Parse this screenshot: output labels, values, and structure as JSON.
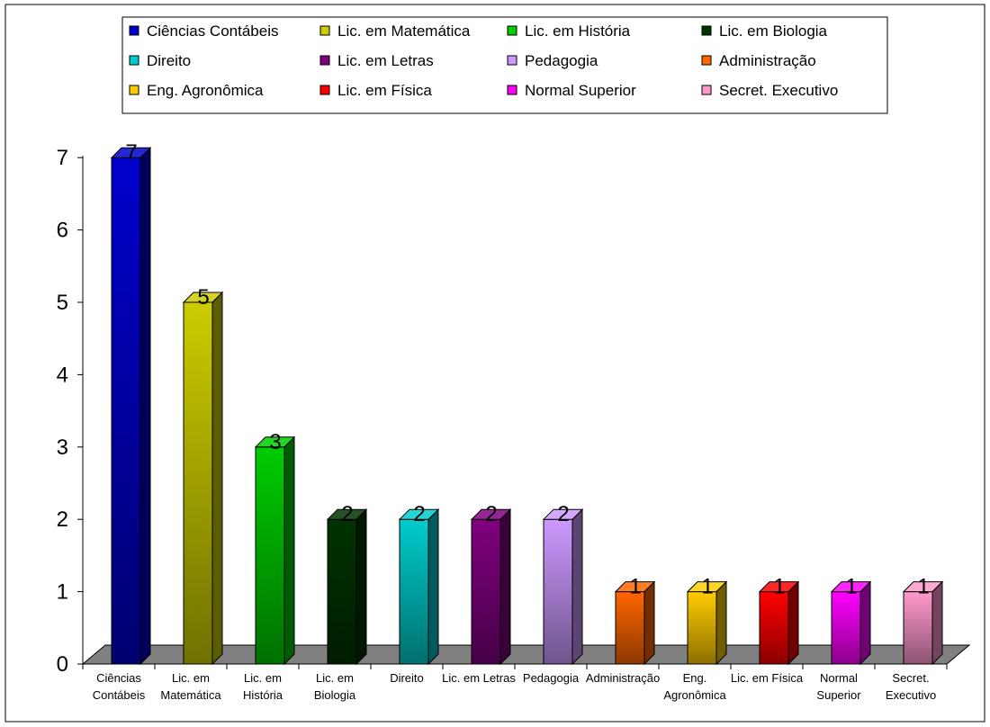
{
  "chart_data": {
    "type": "bar",
    "three_d": true,
    "categories": [
      "Ciências Contábeis",
      "Lic. em Matemática",
      "Lic. em História",
      "Lic. em Biologia",
      "Direito",
      "Lic. em Letras",
      "Pedagogia",
      "Administração",
      "Eng. Agronômica",
      "Lic. em Física",
      "Normal Superior",
      "Secret. Executivo"
    ],
    "category_tick_labels": [
      [
        "Ciências",
        "Contábeis"
      ],
      [
        "Lic. em",
        "Matemática"
      ],
      [
        "Lic. em",
        "História"
      ],
      [
        "Lic. em",
        "Biologia"
      ],
      [
        "Direito"
      ],
      [
        "Lic. em Letras"
      ],
      [
        "Pedagogia"
      ],
      [
        "Administração"
      ],
      [
        "Eng.",
        "Agronômica"
      ],
      [
        "Lic. em Física"
      ],
      [
        "Normal",
        "Superior"
      ],
      [
        "Secret.",
        "Executivo"
      ]
    ],
    "values": [
      7,
      5,
      3,
      2,
      2,
      2,
      2,
      1,
      1,
      1,
      1,
      1
    ],
    "data_labels": [
      "7",
      "5",
      "3",
      "2",
      "2",
      "2",
      "2",
      "1",
      "1",
      "1",
      "1",
      "1"
    ],
    "colors": [
      "#0000cc",
      "#cccc00",
      "#00cc00",
      "#003300",
      "#00cccc",
      "#800080",
      "#cc99ff",
      "#ff6600",
      "#ffcc00",
      "#ff0000",
      "#ff00ff",
      "#ff99cc"
    ],
    "legend": {
      "placement": "top",
      "entries": [
        "Ciências Contábeis",
        "Lic. em  Matemática",
        "Lic. em  História",
        "Lic. em Biologia",
        "Direito",
        "Lic. em Letras",
        "Pedagogia",
        "Administração",
        "Eng. Agronômica",
        "Lic. em Física",
        "Normal Superior",
        "Secret. Executivo"
      ]
    },
    "y_ticks": [
      "0",
      "1",
      "2",
      "3",
      "4",
      "5",
      "6",
      "7"
    ],
    "ylim": [
      0,
      7
    ],
    "grid": false,
    "title": "",
    "xlabel": "",
    "ylabel": ""
  }
}
